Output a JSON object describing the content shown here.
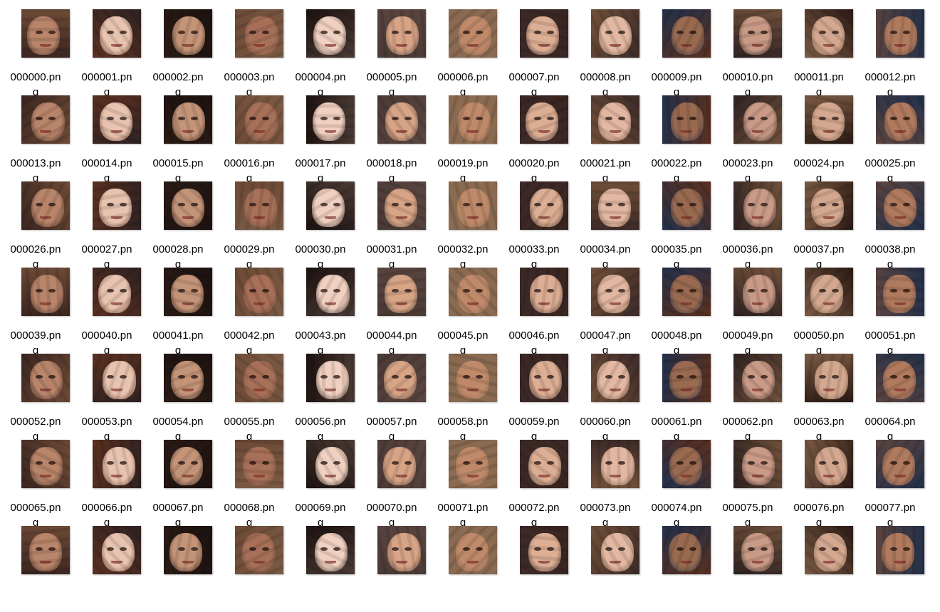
{
  "files": [
    "000000.png",
    "000001.png",
    "000002.png",
    "000003.png",
    "000004.png",
    "000005.png",
    "000006.png",
    "000007.png",
    "000008.png",
    "000009.png",
    "000010.png",
    "000011.png",
    "000012.png",
    "000013.png",
    "000014.png",
    "000015.png",
    "000016.png",
    "000017.png",
    "000018.png",
    "000019.png",
    "000020.png",
    "000021.png",
    "000022.png",
    "000023.png",
    "000024.png",
    "000025.png",
    "000026.png",
    "000027.png",
    "000028.png",
    "000029.png",
    "000030.png",
    "000031.png",
    "000032.png",
    "000033.png",
    "000034.png",
    "000035.png",
    "000036.png",
    "000037.png",
    "000038.png",
    "000039.png",
    "000040.png",
    "000041.png",
    "000042.png",
    "000043.png",
    "000044.png",
    "000045.png",
    "000046.png",
    "000047.png",
    "000048.png",
    "000049.png",
    "000050.png",
    "000051.png",
    "000052.png",
    "000053.png",
    "000054.png",
    "000055.png",
    "000056.png",
    "000057.png",
    "000058.png",
    "000059.png",
    "000060.png",
    "000061.png",
    "000062.png",
    "000063.png",
    "000064.png",
    "000065.png",
    "000066.png",
    "000067.png",
    "000068.png",
    "000069.png",
    "000070.png",
    "000071.png",
    "000072.png",
    "000073.png",
    "000074.png",
    "000075.png",
    "000076.png",
    "000077.png"
  ],
  "partial_row_thumbnails": 13,
  "palette": {
    "hair": [
      "#3a2520",
      "#5a3020",
      "#2a1a14",
      "#6e4a36",
      "#1c1210",
      "#4a3a34",
      "#8a6a50",
      "#3c2a28",
      "#70503a",
      "#23304a",
      "#2e2222",
      "#7a5a44",
      "#5a4440"
    ],
    "skin": [
      "#c99a86",
      "#d8a486",
      "#b8846a",
      "#e2b8a2",
      "#a87058",
      "#d4a890",
      "#c08a6a",
      "#e8c4b0",
      "#9a6a50",
      "#f0d0c0",
      "#b07a5e",
      "#dcae94",
      "#c49478"
    ]
  }
}
